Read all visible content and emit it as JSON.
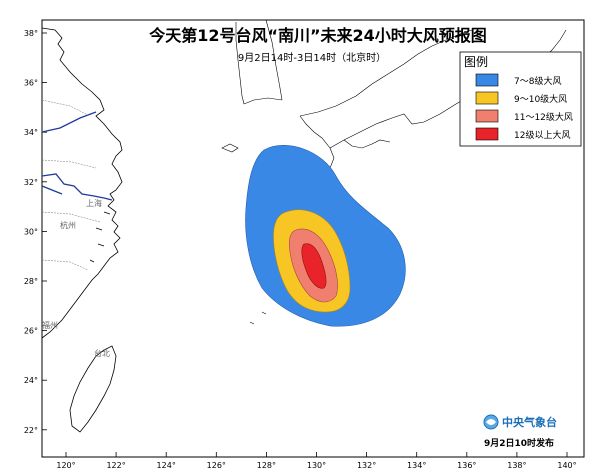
{
  "header": {
    "title": "今天第12号台风“南川”未来24小时大风预报图",
    "subtitle": "9月2日14时-3日14时（北京时）"
  },
  "legend": {
    "title": "图例",
    "items": [
      {
        "label": "7～8级大风",
        "color": "#3a88e6"
      },
      {
        "label": "9～10级大风",
        "color": "#f7c624"
      },
      {
        "label": "11～12级大风",
        "color": "#f07f70"
      },
      {
        "label": "12级以上大风",
        "color": "#e8242a"
      }
    ]
  },
  "axes": {
    "lon_labels": [
      "120°",
      "122°",
      "124°",
      "126°",
      "128°",
      "130°",
      "132°",
      "134°",
      "136°",
      "138°",
      "140°"
    ],
    "lat_labels": [
      "38°",
      "36°",
      "34°",
      "32°",
      "30°",
      "28°",
      "26°",
      "24°",
      "22°"
    ]
  },
  "places": {
    "shanghai": "上海",
    "hangzhou": "杭州",
    "fuzhou": "福州",
    "taipei": "台北"
  },
  "footer": {
    "agency": "中央气象台",
    "issued": "9月2日10时发布"
  },
  "colors": {
    "ocean": "#ffffff",
    "coast": "#000000",
    "river": "#1f3a9a",
    "border": "#555555"
  }
}
